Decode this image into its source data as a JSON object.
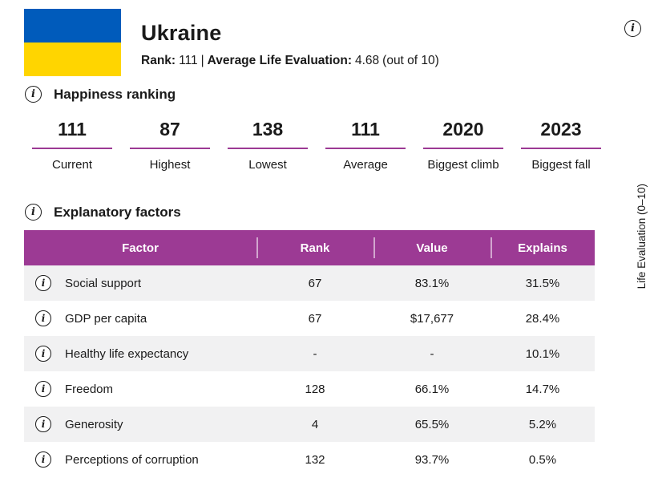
{
  "header": {
    "country": "Ukraine",
    "rank_label": "Rank:",
    "rank_value": "111",
    "separator": "|",
    "avg_label": "Average Life Evaluation:",
    "avg_value": "4.68",
    "avg_suffix": "(out of 10)"
  },
  "icons": {
    "info_glyph": "i"
  },
  "ranking": {
    "title": "Happiness ranking",
    "stats": [
      {
        "value": "111",
        "label": "Current"
      },
      {
        "value": "87",
        "label": "Highest"
      },
      {
        "value": "138",
        "label": "Lowest"
      },
      {
        "value": "111",
        "label": "Average"
      },
      {
        "value": "2020",
        "label": "Biggest climb"
      },
      {
        "value": "2023",
        "label": "Biggest fall"
      }
    ]
  },
  "factors": {
    "title": "Explanatory factors",
    "columns": {
      "factor": "Factor",
      "rank": "Rank",
      "value": "Value",
      "explains": "Explains"
    },
    "rows": [
      {
        "factor": "Social support",
        "rank": "67",
        "value": "83.1%",
        "explains": "31.5%"
      },
      {
        "factor": "GDP per capita",
        "rank": "67",
        "value": "$17,677",
        "explains": "28.4%"
      },
      {
        "factor": "Healthy life expectancy",
        "rank": "-",
        "value": "-",
        "explains": "10.1%"
      },
      {
        "factor": "Freedom",
        "rank": "128",
        "value": "66.1%",
        "explains": "14.7%"
      },
      {
        "factor": "Generosity",
        "rank": "4",
        "value": "65.5%",
        "explains": "5.2%"
      },
      {
        "factor": "Perceptions of corruption",
        "rank": "132",
        "value": "93.7%",
        "explains": "0.5%"
      }
    ]
  },
  "axis": {
    "label": "Life Evaluation (0–10)"
  },
  "colors": {
    "accent_purple": "#9c3a94",
    "flag_blue": "#005BBB",
    "flag_yellow": "#FFD500",
    "row_alt": "#f1f1f2",
    "text": "#1a1a1a"
  }
}
